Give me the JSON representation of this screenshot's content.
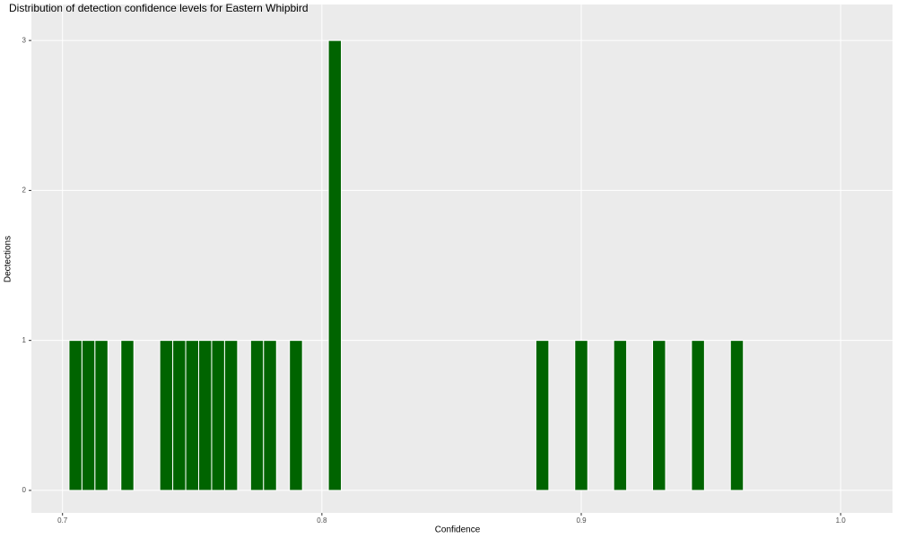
{
  "chart_data": {
    "type": "histogram",
    "title": "Distribution of detection confidence levels for Eastern Whipbird",
    "x_label": "Confidence",
    "y_label": "Dectections",
    "bins": [
      0.7025,
      0.7075,
      0.7125,
      0.7175,
      0.7225,
      0.7275,
      0.7325,
      0.7375,
      0.7425,
      0.7475,
      0.7525,
      0.7575,
      0.7625,
      0.7675,
      0.7725,
      0.7775,
      0.7825,
      0.7875,
      0.7925,
      0.7975,
      0.8025,
      0.8075,
      0.8125,
      0.8175,
      0.8225,
      0.8275,
      0.8325,
      0.8375,
      0.8425,
      0.8475,
      0.8525,
      0.8575,
      0.8625,
      0.8675,
      0.8725,
      0.8775,
      0.8825,
      0.8875,
      0.8925,
      0.8975,
      0.9025,
      0.9075,
      0.9125,
      0.9175,
      0.9225,
      0.9275,
      0.9325,
      0.9375,
      0.9425,
      0.9475,
      0.9525,
      0.9575,
      0.9625
    ],
    "values": [
      1,
      1,
      1,
      0,
      1,
      0,
      0,
      1,
      1,
      1,
      1,
      1,
      1,
      0,
      1,
      1,
      0,
      1,
      0,
      0,
      3,
      0,
      0,
      0,
      0,
      0,
      0,
      0,
      0,
      0,
      0,
      0,
      0,
      0,
      0,
      0,
      1,
      0,
      0,
      1,
      0,
      0,
      1,
      0,
      0,
      1,
      0,
      0,
      1,
      0,
      0,
      1
    ],
    "color": "#006400",
    "xlim": [
      0.688,
      1.02
    ],
    "xticks": [
      0.7,
      0.8,
      0.9,
      {
        "value": 1,
        "label": "1.0"
      }
    ],
    "ylim": [
      -0.15,
      3.24
    ],
    "yticks": [
      0,
      1,
      2,
      3
    ],
    "grid": true
  }
}
